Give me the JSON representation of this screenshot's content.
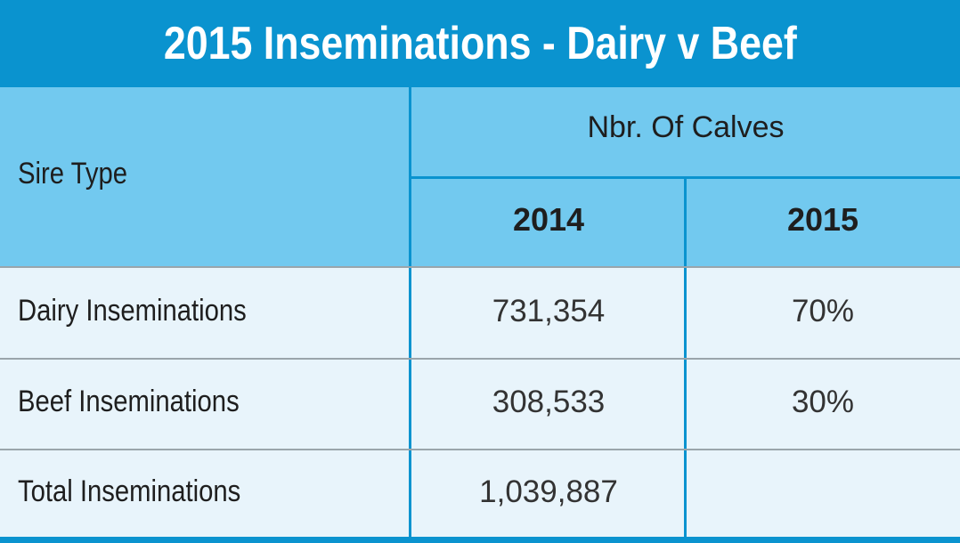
{
  "chart_data": {
    "type": "table",
    "title": "2015 Inseminations - Dairy v Beef",
    "column_header": "Sire Type",
    "group_header": "Nbr. Of Calves",
    "columns": [
      "2014",
      "2015"
    ],
    "rows": [
      {
        "label": "Dairy Inseminations",
        "values": [
          "731,354",
          "70%"
        ]
      },
      {
        "label": "Beef Inseminations",
        "values": [
          "308,533",
          "30%"
        ]
      },
      {
        "label": "Total Inseminations",
        "values": [
          "1,039,887",
          ""
        ]
      }
    ]
  },
  "colors": {
    "title_bar": "#0a93cf",
    "header_band": "#72c9ef",
    "body": "#e8f4fb",
    "row_divider": "#9aa5ab"
  }
}
